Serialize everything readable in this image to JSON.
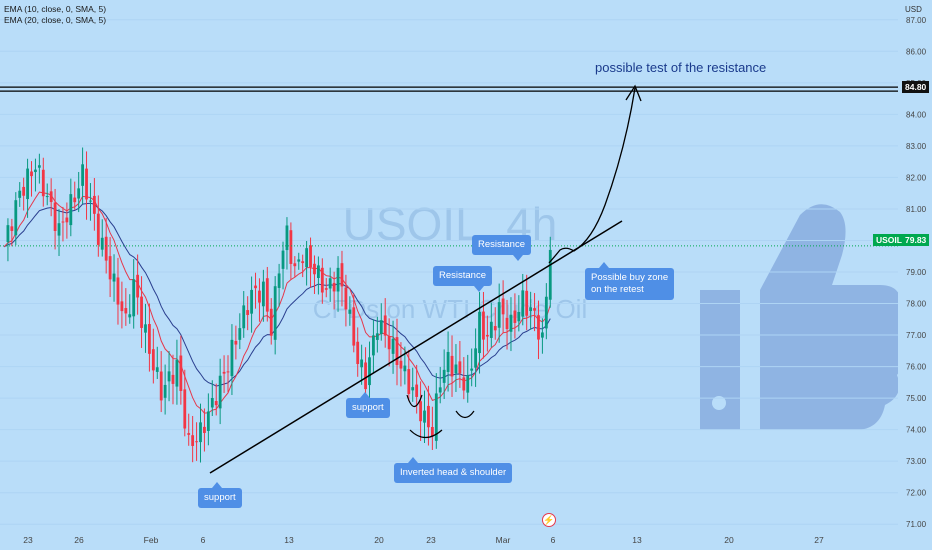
{
  "indicators": [
    "EMA (10, close, 0, SMA, 5)",
    "EMA (20, close, 0, SMA, 5)"
  ],
  "watermark": {
    "symbol": "USOIL, 4h",
    "name": "CFDs on WTI Crude Oil"
  },
  "currency": "USD",
  "colors": {
    "background": "#b9ddf9",
    "up": "#089981",
    "down": "#f23645",
    "ema10": "#e5384c",
    "ema20": "#2a3f8f",
    "callout": "#4f8fe6",
    "current": "#00a84f",
    "trendline": "#000000"
  },
  "chart_data": {
    "type": "candlestick",
    "y_axis": {
      "min": 70.5,
      "max": 87.5,
      "ticks": [
        "71.00",
        "72.00",
        "73.00",
        "74.00",
        "75.00",
        "76.00",
        "77.00",
        "78.00",
        "79.00",
        "80.00",
        "81.00",
        "82.00",
        "83.00",
        "84.00",
        "85.00",
        "86.00",
        "87.00"
      ]
    },
    "x_axis_labels": [
      "23",
      "26",
      "Feb",
      "6",
      "13",
      "20",
      "23",
      "Mar",
      "6",
      "13",
      "20",
      "27"
    ],
    "resistance_level": "84.80",
    "current_price": {
      "label": "USOIL",
      "value": "79.83"
    },
    "ohlc_anchors": [
      {
        "i": 0,
        "c": 79.8
      },
      {
        "i": 4,
        "c": 81.5
      },
      {
        "i": 8,
        "c": 82.4
      },
      {
        "i": 10,
        "c": 81.7
      },
      {
        "i": 14,
        "c": 80.3
      },
      {
        "i": 18,
        "c": 81.4
      },
      {
        "i": 20,
        "c": 82.1
      },
      {
        "i": 24,
        "c": 80.2
      },
      {
        "i": 27,
        "c": 79.0
      },
      {
        "i": 31,
        "c": 77.4
      },
      {
        "i": 33,
        "c": 78.6
      },
      {
        "i": 37,
        "c": 76.5
      },
      {
        "i": 40,
        "c": 75.2
      },
      {
        "i": 44,
        "c": 76.0
      },
      {
        "i": 47,
        "c": 73.5
      },
      {
        "i": 50,
        "c": 73.9
      },
      {
        "i": 53,
        "c": 74.8
      },
      {
        "i": 57,
        "c": 76.1
      },
      {
        "i": 60,
        "c": 77.3
      },
      {
        "i": 63,
        "c": 78.3
      },
      {
        "i": 66,
        "c": 78.4
      },
      {
        "i": 68,
        "c": 77.2
      },
      {
        "i": 70,
        "c": 79.2
      },
      {
        "i": 72,
        "c": 80.2
      },
      {
        "i": 74,
        "c": 79.0
      },
      {
        "i": 76,
        "c": 79.6
      },
      {
        "i": 79,
        "c": 79.1
      },
      {
        "i": 82,
        "c": 78.4
      },
      {
        "i": 85,
        "c": 78.9
      },
      {
        "i": 87,
        "c": 78.1
      },
      {
        "i": 90,
        "c": 76.2
      },
      {
        "i": 92,
        "c": 75.6
      },
      {
        "i": 95,
        "c": 77.4
      },
      {
        "i": 98,
        "c": 76.8
      },
      {
        "i": 101,
        "c": 76.0
      },
      {
        "i": 104,
        "c": 75.2
      },
      {
        "i": 107,
        "c": 74.3
      },
      {
        "i": 109,
        "c": 74.0
      },
      {
        "i": 111,
        "c": 75.6
      },
      {
        "i": 113,
        "c": 76.2
      },
      {
        "i": 116,
        "c": 75.7
      },
      {
        "i": 118,
        "c": 75.4
      },
      {
        "i": 121,
        "c": 77.4
      },
      {
        "i": 123,
        "c": 76.9
      },
      {
        "i": 126,
        "c": 77.8
      },
      {
        "i": 129,
        "c": 77.3
      },
      {
        "i": 132,
        "c": 78.1
      },
      {
        "i": 135,
        "c": 77.6
      },
      {
        "i": 137,
        "c": 76.8
      },
      {
        "i": 139,
        "c": 79.7
      }
    ],
    "annotations": {
      "title_note": "possible test of the resistance",
      "resistance_1": "Resistance",
      "resistance_2": "Resistance",
      "buy_zone": "Possible buy zone\non the retest",
      "support_1": "support",
      "support_2": "support",
      "pattern": "Inverted head & shoulder"
    }
  }
}
